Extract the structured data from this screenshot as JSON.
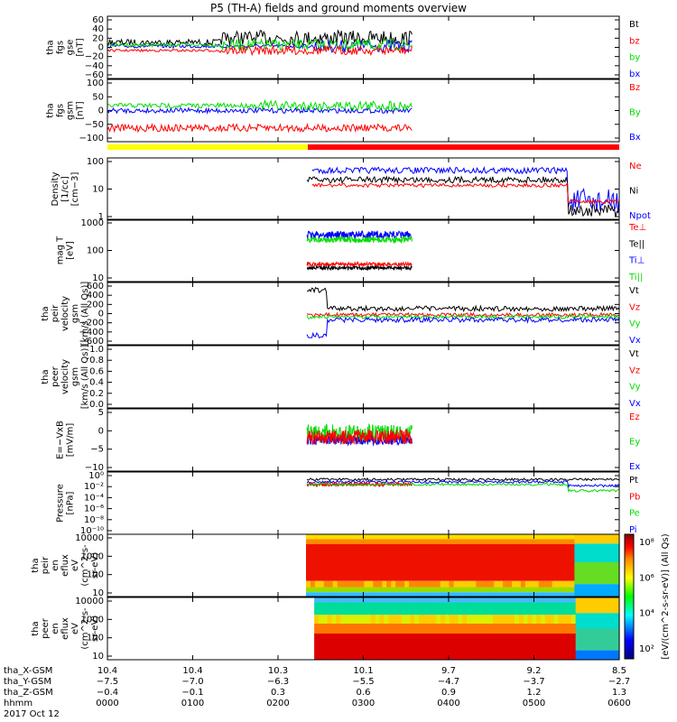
{
  "title": "P5 (TH-A) fields and ground moments overview",
  "colors": {
    "black": "#000000",
    "red": "#ff0000",
    "green": "#00dd00",
    "blue": "#0000ff",
    "yellow": "#ffff00"
  },
  "chart_data": {
    "type": "line",
    "time_ticks": [
      "0000",
      "0100",
      "0200",
      "0300",
      "0400",
      "0500",
      "0600"
    ],
    "date": "2017 Oct 12",
    "panels": [
      {
        "id": "fgs_gse",
        "ylabel": [
          "tha",
          "fgs",
          "gse",
          "[nT]"
        ],
        "ticks": [
          "60",
          "40",
          "20",
          "0",
          "−20",
          "−40",
          "−60"
        ],
        "ylim": [
          -60,
          60
        ],
        "series": [
          {
            "name": "Bt",
            "color": "black"
          },
          {
            "name": "bz",
            "color": "red"
          },
          {
            "name": "by",
            "color": "green"
          },
          {
            "name": "bx",
            "color": "blue"
          }
        ]
      },
      {
        "id": "fgs_gsm",
        "ylabel": [
          "tha",
          "fgs",
          "gsm",
          "[nT]"
        ],
        "ticks": [
          "100",
          "50",
          "0",
          "−50",
          "−100"
        ],
        "ylim": [
          -120,
          100
        ],
        "series": [
          {
            "name": "Bz",
            "color": "red"
          },
          {
            "name": "By",
            "color": "green"
          },
          {
            "name": "Bx",
            "color": "blue"
          }
        ]
      },
      {
        "id": "density",
        "ylabel": [
          "Density",
          "[1/cc]",
          "[cm−3]"
        ],
        "ticks": [
          "100",
          "10",
          "1"
        ],
        "ylim": [
          0.3,
          200
        ],
        "log": true,
        "series": [
          {
            "name": "Ne",
            "color": "red"
          },
          {
            "name": "Ni",
            "color": "black"
          },
          {
            "name": "Npot",
            "color": "blue"
          }
        ]
      },
      {
        "id": "temp",
        "ylabel": [
          "mag T",
          "[eV]"
        ],
        "ticks": [
          "1000",
          "100",
          "10"
        ],
        "ylim": [
          8,
          3000
        ],
        "log": true,
        "series": [
          {
            "name": "Te⊥",
            "color": "red"
          },
          {
            "name": "Te||",
            "color": "black"
          },
          {
            "name": "Ti⊥",
            "color": "blue"
          },
          {
            "name": "Ti||",
            "color": "green"
          }
        ]
      },
      {
        "id": "vel",
        "ylabel": [
          "tha",
          "peir",
          "velocity",
          "gsm",
          "[km/s (All Qs)]"
        ],
        "ticks": [
          "600",
          "400",
          "200",
          "0",
          "−200",
          "−400",
          "−600"
        ],
        "ylim": [
          -600,
          600
        ],
        "series": [
          {
            "name": "Vt",
            "color": "black"
          },
          {
            "name": "Vz",
            "color": "red"
          },
          {
            "name": "Vy",
            "color": "green"
          },
          {
            "name": "Vx",
            "color": "blue"
          }
        ]
      },
      {
        "id": "vele",
        "ylabel": [
          "tha",
          "peer",
          "velocity",
          "gsm",
          "[km/s (All Qs)]"
        ],
        "ticks": [
          "1.0",
          "0.8",
          "0.6",
          "0.4",
          "0.2",
          "0.0"
        ],
        "ylim": [
          0,
          1
        ],
        "series": [
          {
            "name": "Vt",
            "color": "black"
          },
          {
            "name": "Vz",
            "color": "red"
          },
          {
            "name": "Vy",
            "color": "green"
          },
          {
            "name": "Vx",
            "color": "blue"
          }
        ]
      },
      {
        "id": "efield",
        "ylabel": [
          "E=−VxB",
          "[mV/m]"
        ],
        "ticks": [
          "5",
          "0",
          "−5",
          "−10"
        ],
        "ylim": [
          -11,
          9
        ],
        "series": [
          {
            "name": "Ez",
            "color": "red"
          },
          {
            "name": "Ey",
            "color": "green"
          },
          {
            "name": "Ex",
            "color": "blue"
          }
        ]
      },
      {
        "id": "pressure",
        "ylabel": [
          "Pressure",
          "[nPa]"
        ],
        "ticks": [
          "10⁰",
          "10⁻²",
          "10⁻⁴",
          "10⁻⁶",
          "10⁻⁸",
          "10⁻¹⁰"
        ],
        "ylim": [
          -11,
          1
        ],
        "log": true,
        "series": [
          {
            "name": "Pt",
            "color": "black"
          },
          {
            "name": "Pb",
            "color": "red"
          },
          {
            "name": "Pe",
            "color": "green"
          },
          {
            "name": "Pi",
            "color": "blue"
          }
        ]
      },
      {
        "id": "peir_spec",
        "ylabel": [
          "tha",
          "peir",
          "en",
          "eflux",
          "eV",
          "(cm^2-s-",
          "sr-eV)"
        ],
        "ticks": [
          "10000",
          "1000",
          "100",
          "10"
        ],
        "type": "heatmap"
      },
      {
        "id": "peer_spec",
        "ylabel": [
          "tha",
          "peer",
          "en",
          "eflux",
          "eV",
          "(cm^2-s-",
          "sr-eV)"
        ],
        "ticks": [
          "10000",
          "1000",
          "100",
          "10"
        ],
        "type": "heatmap"
      }
    ],
    "colorbar": {
      "label": "[eV/(cm^2-s-sr-eV)] (All Qs)",
      "ticks": [
        "10⁸",
        "10⁶",
        "10⁴",
        "10²"
      ]
    }
  },
  "footer": {
    "row_labels": [
      "tha_X-GSM",
      "tha_Y-GSM",
      "tha_Z-GSM",
      "hhmm",
      "2017 Oct 12"
    ],
    "x_gsm": [
      "10.4",
      "10.4",
      "10.3",
      "10.1",
      "9.7",
      "9.2",
      "8.5"
    ],
    "y_gsm": [
      "−7.5",
      "−7.0",
      "−6.3",
      "−5.5",
      "−4.7",
      "−3.7",
      "−2.7"
    ],
    "z_gsm": [
      "−0.4",
      "−0.1",
      "0.3",
      "0.6",
      "0.9",
      "1.2",
      "1.3"
    ],
    "hhmm": [
      "0000",
      "0100",
      "0200",
      "0300",
      "0400",
      "0500",
      "0600"
    ]
  }
}
